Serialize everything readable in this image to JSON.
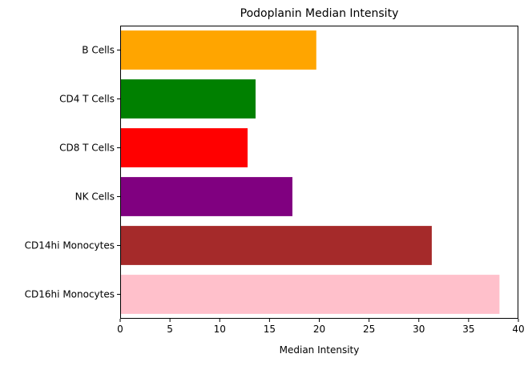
{
  "chart_data": {
    "type": "bar",
    "orientation": "horizontal",
    "title": "Podoplanin Median Intensity",
    "xlabel": "Median Intensity",
    "ylabel": "",
    "categories": [
      "B Cells",
      "CD4 T Cells",
      "CD8 T Cells",
      "NK Cells",
      "CD14hi Monocytes",
      "CD16hi Monocytes"
    ],
    "values": [
      19.7,
      13.6,
      12.8,
      17.3,
      31.3,
      38.1
    ],
    "colors": [
      "#ffa500",
      "#008000",
      "#ff0000",
      "#800080",
      "#a52a2a",
      "#ffc0cb"
    ],
    "xlim": [
      0,
      40
    ],
    "xticks": [
      0,
      5,
      10,
      15,
      20,
      25,
      30,
      35,
      40
    ],
    "grid": false,
    "legend": "none"
  }
}
